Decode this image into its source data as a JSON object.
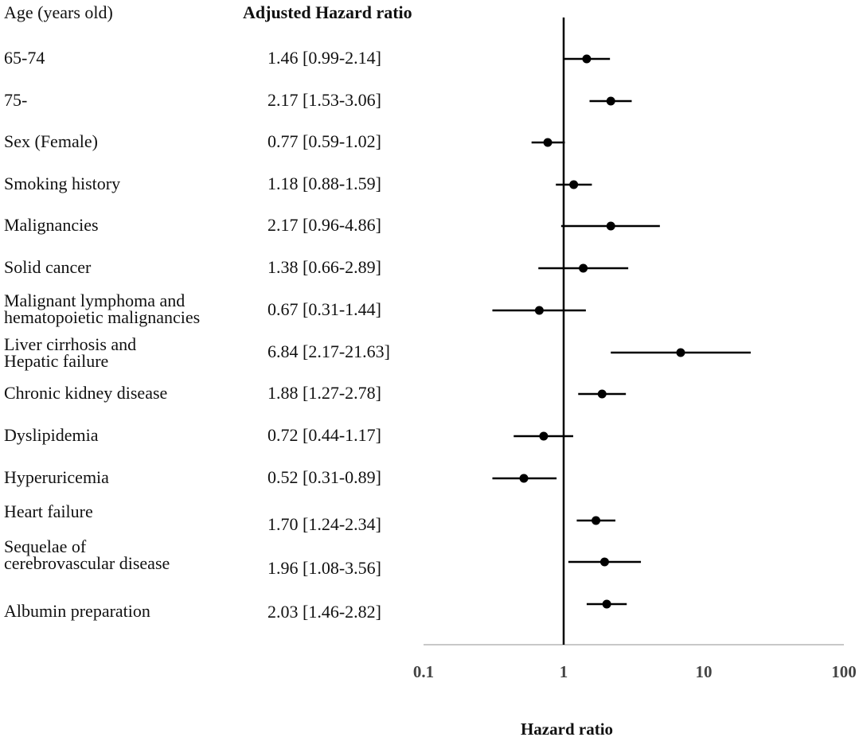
{
  "header": {
    "variable_col": "Age (years old)",
    "ratio_col": "Adjusted Hazard ratio"
  },
  "chart_data": {
    "type": "forest",
    "title": "",
    "xlabel": "Hazard ratio",
    "ylabel": "",
    "xscale": "log",
    "xlim": [
      0.1,
      100
    ],
    "xticks": [
      0.1,
      1,
      10,
      100
    ],
    "xtick_labels": [
      "0.1",
      "1",
      "10",
      "100"
    ],
    "reference_line": 1,
    "rows": [
      {
        "label": "65-74",
        "hr_text": "1.46 [0.99-2.14]",
        "hr": 1.46,
        "lo": 0.99,
        "hi": 2.14
      },
      {
        "label": "75-",
        "hr_text": "2.17 [1.53-3.06]",
        "hr": 2.17,
        "lo": 1.53,
        "hi": 3.06
      },
      {
        "label": "Sex (Female)",
        "hr_text": "0.77 [0.59-1.02]",
        "hr": 0.77,
        "lo": 0.59,
        "hi": 1.02
      },
      {
        "label": "Smoking history",
        "hr_text": "1.18 [0.88-1.59]",
        "hr": 1.18,
        "lo": 0.88,
        "hi": 1.59
      },
      {
        "label": "Malignancies",
        "hr_text": "2.17 [0.96-4.86]",
        "hr": 2.17,
        "lo": 0.96,
        "hi": 4.86
      },
      {
        "label": "Solid cancer",
        "hr_text": "1.38 [0.66-2.89]",
        "hr": 1.38,
        "lo": 0.66,
        "hi": 2.89
      },
      {
        "label": "Malignant lymphoma and\nhematopoietic malignancies",
        "hr_text": "0.67 [0.31-1.44]",
        "hr": 0.67,
        "lo": 0.31,
        "hi": 1.44
      },
      {
        "label": "Liver cirrhosis and\nHepatic failure",
        "hr_text": "6.84 [2.17-21.63]",
        "hr": 6.84,
        "lo": 2.17,
        "hi": 21.63
      },
      {
        "label": "Chronic kidney disease",
        "hr_text": "1.88 [1.27-2.78]",
        "hr": 1.88,
        "lo": 1.27,
        "hi": 2.78
      },
      {
        "label": "Dyslipidemia",
        "hr_text": "0.72 [0.44-1.17]",
        "hr": 0.72,
        "lo": 0.44,
        "hi": 1.17
      },
      {
        "label": "Hyperuricemia",
        "hr_text": "0.52 [0.31-0.89]",
        "hr": 0.52,
        "lo": 0.31,
        "hi": 0.89
      },
      {
        "label": "Heart failure",
        "hr_text": "1.70 [1.24-2.34]",
        "hr": 1.7,
        "lo": 1.24,
        "hi": 2.34
      },
      {
        "label": "Sequelae of\ncerebrovascular disease",
        "hr_text": "1.96 [1.08-3.56]",
        "hr": 1.96,
        "lo": 1.08,
        "hi": 3.56
      },
      {
        "label": "Albumin preparation",
        "hr_text": "2.03 [1.46-2.82]",
        "hr": 2.03,
        "lo": 1.46,
        "hi": 2.82
      }
    ]
  }
}
